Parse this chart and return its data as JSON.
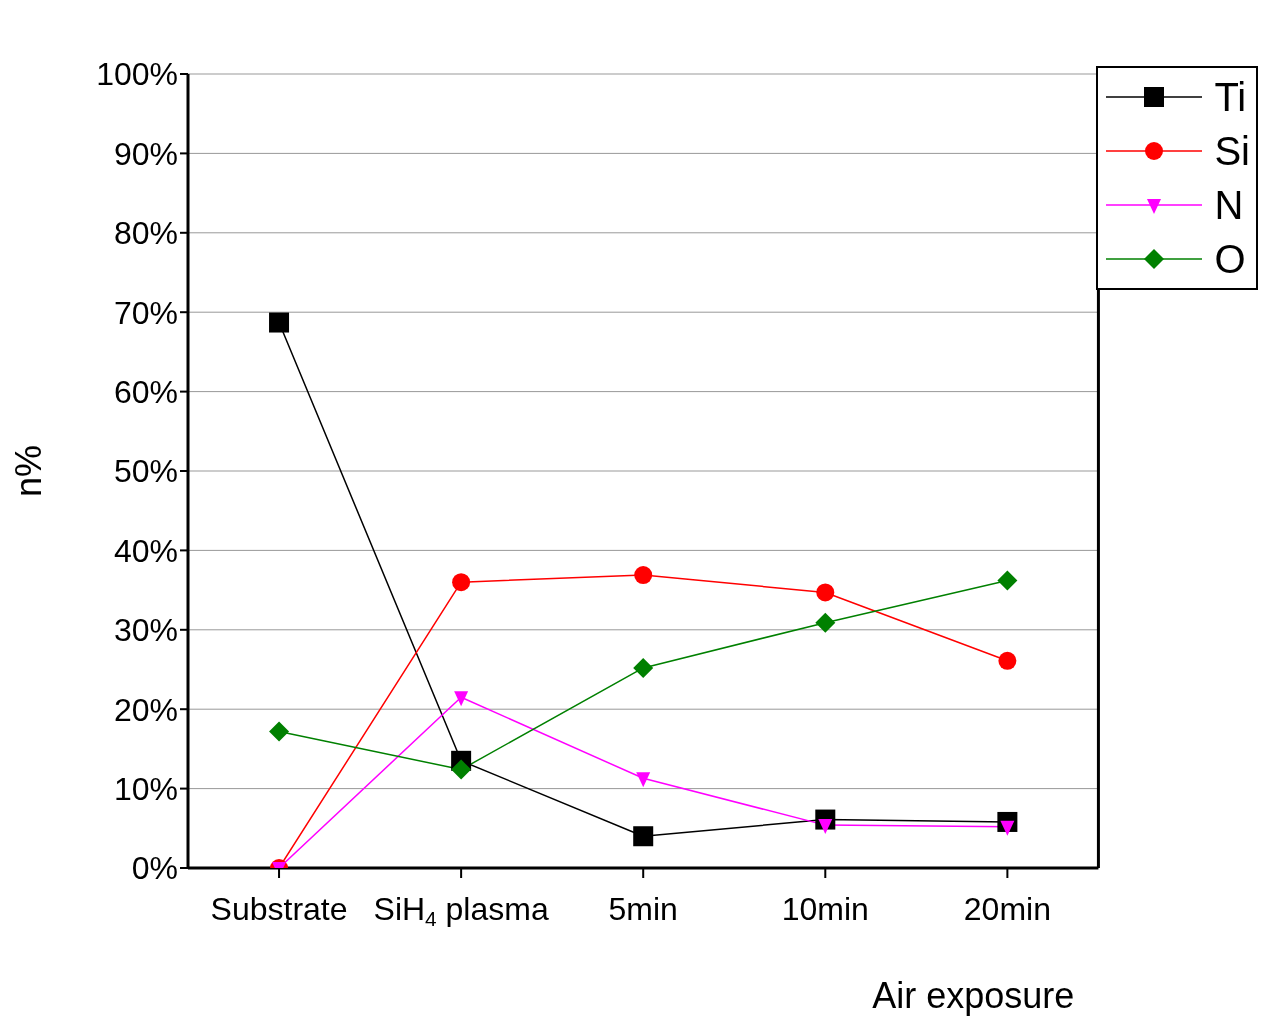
{
  "chart_data": {
    "type": "line",
    "xlabel": "Air exposure",
    "ylabel": "n%",
    "categories": [
      "Substrate",
      "SiH$_{4}$ plasma",
      "5min",
      "10min",
      "20min"
    ],
    "series": [
      {
        "name": "Ti",
        "color": "#000000",
        "marker": "square",
        "values": [
          68.7,
          13.5,
          4.0,
          6.1,
          5.8
        ]
      },
      {
        "name": "Si",
        "color": "#ff0000",
        "marker": "circle",
        "values": [
          0,
          36.0,
          36.9,
          34.7,
          26.1
        ]
      },
      {
        "name": "N",
        "color": "#ff00ff",
        "marker": "triangle",
        "values": [
          0,
          21.5,
          11.3,
          5.4,
          5.2
        ]
      },
      {
        "name": "O",
        "color": "#008000",
        "marker": "diamond",
        "values": [
          17.2,
          12.4,
          25.2,
          30.9,
          36.2
        ]
      }
    ],
    "ylim": [
      0,
      100
    ],
    "yticks": [
      {
        "value": 0,
        "label": "0%"
      },
      {
        "value": 10,
        "label": "10%"
      },
      {
        "value": 20,
        "label": "20%"
      },
      {
        "value": 30,
        "label": "30%"
      },
      {
        "value": 40,
        "label": "40%"
      },
      {
        "value": 50,
        "label": "50%"
      },
      {
        "value": 60,
        "label": "60%"
      },
      {
        "value": 70,
        "label": "70%"
      },
      {
        "value": 80,
        "label": "80%"
      },
      {
        "value": 90,
        "label": "90%"
      },
      {
        "value": 100,
        "label": "100%"
      }
    ],
    "grid": "y",
    "legend": "top right"
  }
}
